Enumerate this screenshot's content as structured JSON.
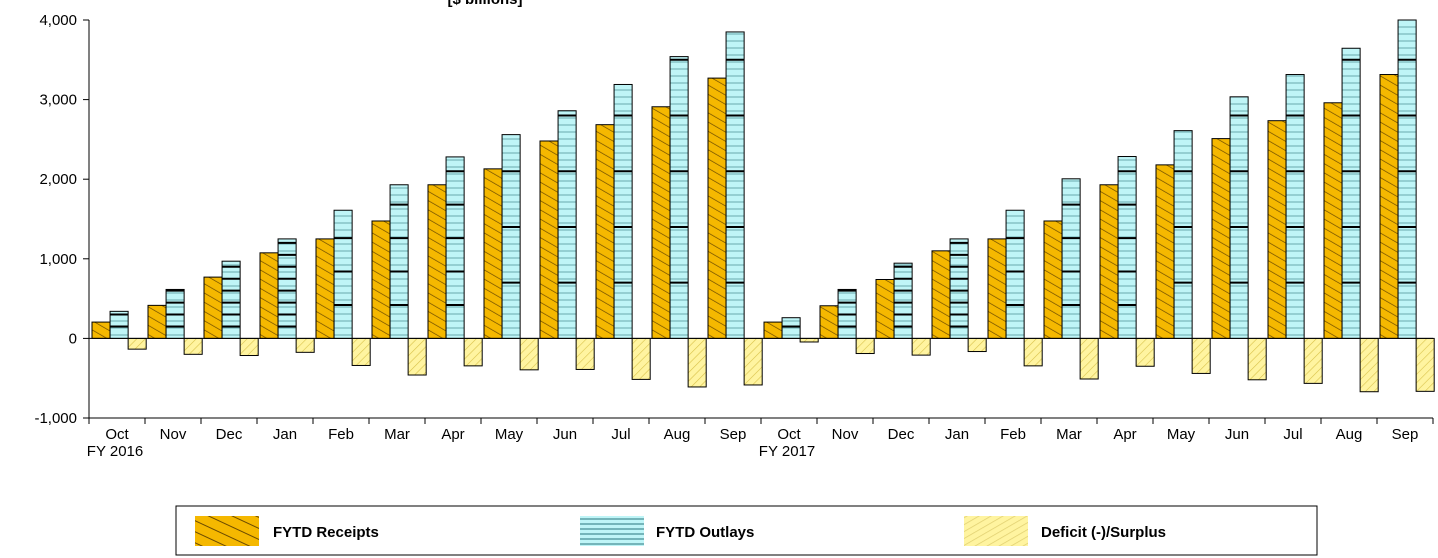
{
  "chart_data": {
    "type": "bar",
    "title": "[$ billions]",
    "ylim": [
      -1000,
      4000
    ],
    "yticks": [
      -1000,
      0,
      1000,
      2000,
      3000,
      4000
    ],
    "ytick_labels": [
      "-1,000",
      "0",
      "1,000",
      "2,000",
      "3,000",
      "4,000"
    ],
    "categories": [
      "Oct",
      "Nov",
      "Dec",
      "Jan",
      "Feb",
      "Mar",
      "Apr",
      "May",
      "Jun",
      "Jul",
      "Aug",
      "Sep",
      "Oct",
      "Nov",
      "Dec",
      "Jan",
      "Feb",
      "Mar",
      "Apr",
      "May",
      "Jun",
      "Jul",
      "Aug",
      "Sep"
    ],
    "year_labels": [
      {
        "label": "FY 2016",
        "category_index": 0
      },
      {
        "label": "FY 2017",
        "category_index": 12
      }
    ],
    "series": [
      {
        "name": "FYTD Receipts",
        "color": "#F5B800",
        "values": [
          205,
          415,
          770,
          1075,
          1250,
          1475,
          1930,
          2130,
          2480,
          2685,
          2910,
          3270,
          205,
          410,
          740,
          1100,
          1250,
          1475,
          1930,
          2180,
          2510,
          2735,
          2960,
          3315
        ]
      },
      {
        "name": "FYTD Outlays",
        "color": "#BFF5F7",
        "values": [
          340,
          615,
          970,
          1250,
          1610,
          1930,
          2280,
          2560,
          2860,
          3190,
          3540,
          3850,
          260,
          615,
          945,
          1250,
          1610,
          2005,
          2285,
          2610,
          3035,
          3315,
          3645,
          4000
        ]
      },
      {
        "name": "Deficit (-)/Surplus",
        "color": "#FFF7A0",
        "values": [
          -135,
          -200,
          -215,
          -175,
          -340,
          -460,
          -345,
          -395,
          -390,
          -515,
          -610,
          -585,
          -45,
          -190,
          -210,
          -165,
          -345,
          -510,
          -350,
          -440,
          -520,
          -565,
          -670,
          -665
        ]
      }
    ],
    "legend_position": "bottom"
  },
  "legend": {
    "receipts_label": "FYTD Receipts",
    "outlays_label": "FYTD Outlays",
    "deficit_label": "Deficit (-)/Surplus"
  }
}
